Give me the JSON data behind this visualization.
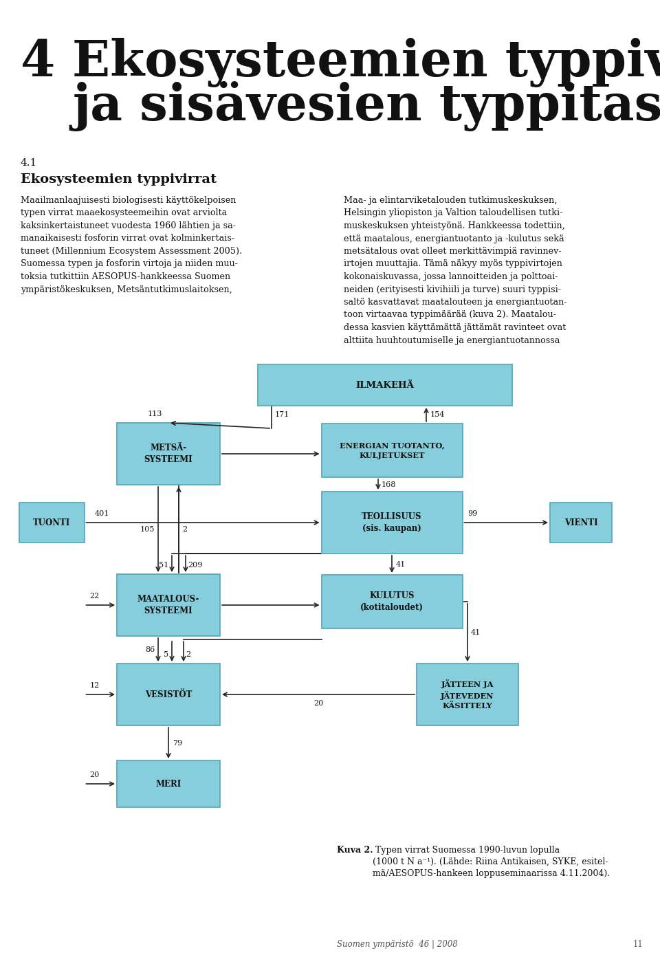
{
  "title_number": "4",
  "title_line1": "Ekosysteemien typpivirrat",
  "title_line2": "ja sisävesien typpitase",
  "section_number": "4.1",
  "section_title": "Ekosysteemien typpivirrat",
  "body_text_left": "Maailmanlaajuisesti biologisesti käyttökelpoisen\ntypen virrat maaekosysteemeihin ovat arviolta\nkaksinkertaistuneet vuodesta 1960 lähtien ja sa-\nmanaikaisesti fosforin virrat ovat kolminkertais-\ntuneet (Millennium Ecosystem Assessment 2005).\nSuomessa typen ja fosforin virtoja ja niiden muu-\ntoksia tutkittiin AESOPUS-hankkeessa Suomen\nympäristökeskuksen, Metsäntutkimuslaitoksen,",
  "body_text_right": "Maa- ja elintarviketalouden tutkimuskeskuksen,\nHelsingin yliopiston ja Valtion taloudellisen tutki-\nmuskeskuksen yhteistyönä. Hankkeessa todettiin,\nettä maatalous, energiantuotanto ja -kulutus sekä\nmetsätalous ovat olleet merkittävimpiä ravinnev-\nirtojen muuttajia. Tämä näkyy myös typpivirtojen\nkokonaiskuvassa, jossa lannoitteiden ja polttoai-\nneiden (erityisesti kivihiili ja turve) suuri typpisi-\nsaltö kasvattavat maatalouteen ja energiantuotan-\ntoon virtaavaa typpimäärää (kuva 2). Maatalou-\ndessa kasvien käyttämättä jättämät ravinteet ovat\nalttiita huuhtoutumiselle ja energiantuotannossa",
  "caption_bold": "Kuva 2.",
  "caption_text": " Typen virrat Suomessa 1990-luvun lopulla\n(1000 t N a⁻¹). (Lähde: Riina Antikaisen, SYKE, esitel-\nmä/AESOPUS-hankeen loppuseminaarissa 4.11.2004).",
  "footer": "Suomen ympäristö  46 | 2008",
  "footer_page": "11",
  "box_fill": "#87CEDC",
  "box_edge": "#5AAABB",
  "background": "#FFFFFF",
  "text_color": "#1A1A1A"
}
